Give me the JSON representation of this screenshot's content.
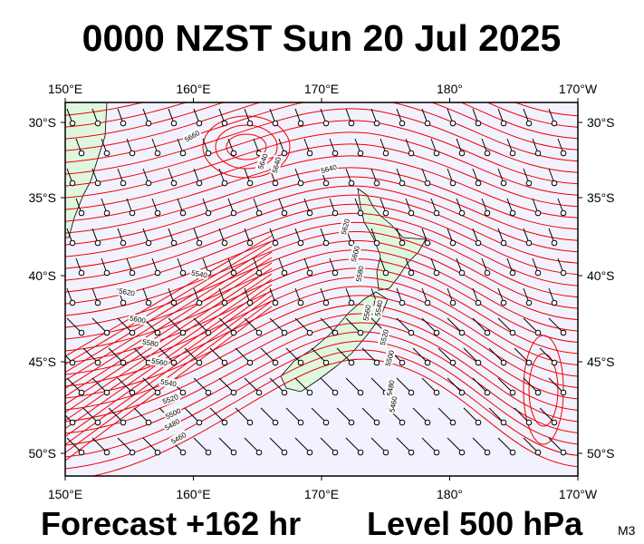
{
  "header": {
    "title": "0000 NZST Sun 20 Jul 2025"
  },
  "map": {
    "lon_labels": [
      "150°E",
      "160°E",
      "170°E",
      "180°",
      "170°W"
    ],
    "lat_labels": [
      "30°S",
      "35°S",
      "40°S",
      "45°S",
      "50°S"
    ],
    "contour_labels": [
      "5660",
      "5640",
      "5640",
      "5640",
      "5620",
      "5600",
      "5580",
      "5540",
      "5620",
      "5600",
      "5580",
      "5560",
      "5540",
      "5520",
      "5500",
      "5480",
      "5460",
      "5560",
      "5540",
      "5520",
      "5500",
      "5480",
      "5460"
    ]
  },
  "footer": {
    "forecast": "Forecast +162 hr",
    "level": "Level 500 hPa",
    "code": "M3"
  }
}
